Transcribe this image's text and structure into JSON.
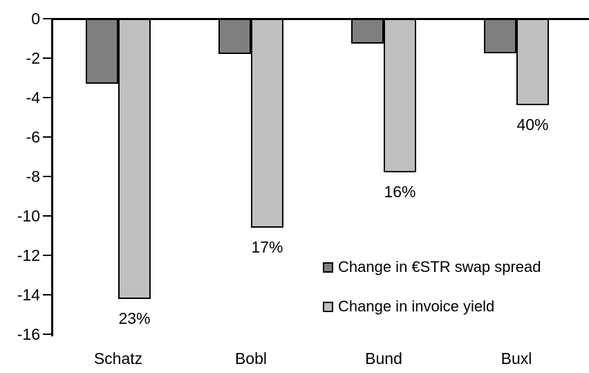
{
  "chart_data": {
    "type": "bar",
    "title": "",
    "xlabel": "",
    "ylabel": "",
    "categories": [
      "Schatz",
      "Bobl",
      "Bund",
      "Buxl"
    ],
    "series": [
      {
        "name": "Change in €STR swap spread",
        "color": "#7f7f7f",
        "values": [
          -3.3,
          -1.8,
          -1.25,
          -1.75
        ]
      },
      {
        "name": "Change in invoice yield",
        "color": "#bfbfbf",
        "values": [
          -14.2,
          -10.6,
          -7.8,
          -4.4
        ],
        "data_labels": [
          "23%",
          "17%",
          "16%",
          "40%"
        ]
      }
    ],
    "ylim": [
      -16,
      0
    ],
    "yticks": [
      0,
      -2,
      -4,
      -6,
      -8,
      -10,
      -12,
      -14,
      -16
    ],
    "grid": false,
    "legend_position": "inside-right-middle",
    "axis_color": "#000000",
    "bar_border_color": "#000000",
    "background": "#ffffff"
  }
}
